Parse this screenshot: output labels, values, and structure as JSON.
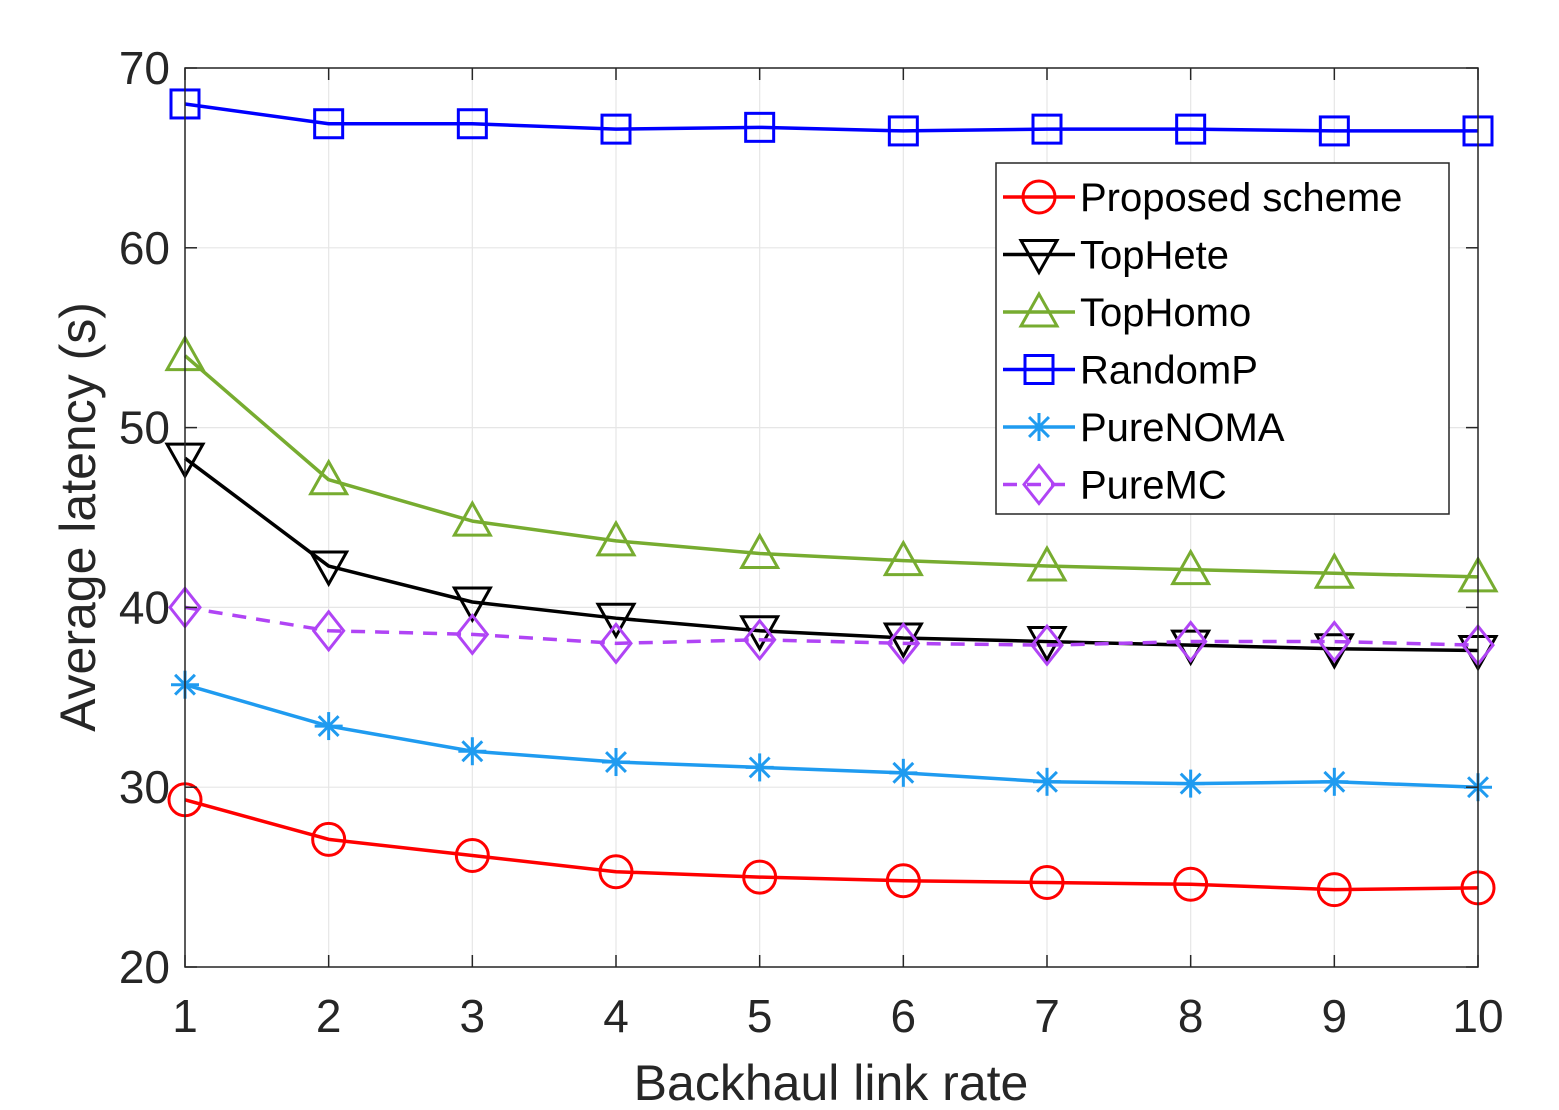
{
  "chart_data": {
    "type": "line",
    "xlabel": "Backhaul link rate",
    "ylabel": "Average latency (s)",
    "x": [
      1,
      2,
      3,
      4,
      5,
      6,
      7,
      8,
      9,
      10
    ],
    "xlim": [
      1,
      10
    ],
    "ylim": [
      20,
      70
    ],
    "xticks": [
      1,
      2,
      3,
      4,
      5,
      6,
      7,
      8,
      9,
      10
    ],
    "yticks": [
      20,
      30,
      40,
      50,
      60,
      70
    ],
    "grid": true,
    "legend_position": "top-right",
    "series": [
      {
        "name": "Proposed scheme",
        "color": "#ff0000",
        "marker": "circle",
        "dash": false,
        "values": [
          29.3,
          27.1,
          26.2,
          25.3,
          25.0,
          24.8,
          24.7,
          24.6,
          24.3,
          24.4
        ]
      },
      {
        "name": "TopHete",
        "color": "#000000",
        "marker": "triangle-down",
        "dash": false,
        "values": [
          48.3,
          42.3,
          40.3,
          39.4,
          38.7,
          38.3,
          38.1,
          37.9,
          37.7,
          37.6
        ]
      },
      {
        "name": "TopHomo",
        "color": "#77ac30",
        "marker": "triangle-up",
        "dash": false,
        "values": [
          54.0,
          47.1,
          44.8,
          43.7,
          43.0,
          42.6,
          42.3,
          42.1,
          41.9,
          41.7
        ]
      },
      {
        "name": "RandomP",
        "color": "#0000ff",
        "marker": "square",
        "dash": false,
        "values": [
          68.0,
          66.9,
          66.9,
          66.6,
          66.7,
          66.5,
          66.6,
          66.6,
          66.5,
          66.5
        ]
      },
      {
        "name": "PureNOMA",
        "color": "#1f9bf0",
        "marker": "asterisk",
        "dash": false,
        "values": [
          35.7,
          33.4,
          32.0,
          31.4,
          31.1,
          30.8,
          30.3,
          30.2,
          30.3,
          30.0
        ]
      },
      {
        "name": "PureMC",
        "color": "#b044f5",
        "marker": "diamond",
        "dash": true,
        "values": [
          40.0,
          38.7,
          38.5,
          38.0,
          38.2,
          38.0,
          37.9,
          38.1,
          38.1,
          37.9
        ]
      }
    ]
  }
}
